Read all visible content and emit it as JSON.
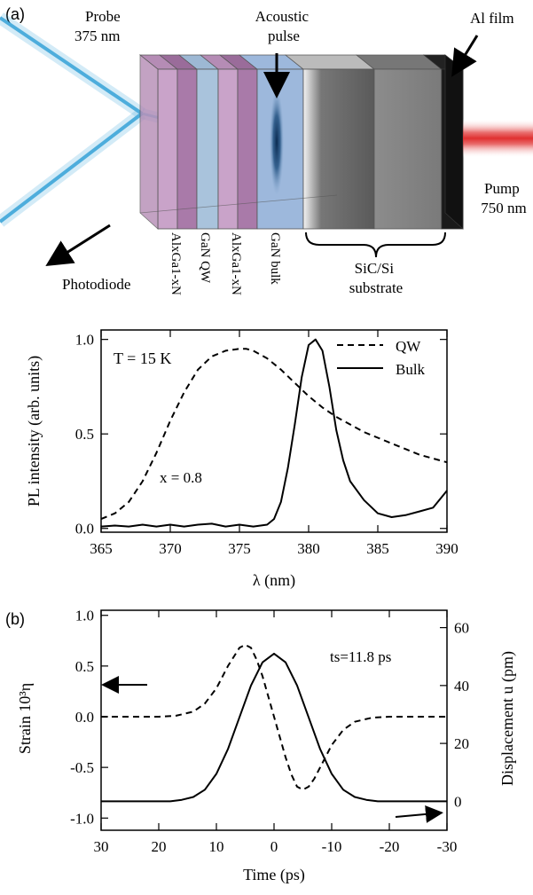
{
  "panel_a_label": "(a)",
  "panel_b_label": "(b)",
  "diagram": {
    "probe_label_line1": "Probe",
    "probe_label_line2": "375 nm",
    "acoustic_label_line1": "Acoustic",
    "acoustic_label_line2": "pulse",
    "al_film_label": "Al film",
    "pump_label_line1": "Pump",
    "pump_label_line2": "750 nm",
    "photodiode_label": "Photodiode",
    "layer_labels": [
      "AlxGa1-xN",
      "GaN QW",
      "AlxGa1-xN",
      "GaN bulk"
    ],
    "substrate_label_line1": "SiC/Si",
    "substrate_label_line2": "substrate",
    "colors": {
      "algan": "#c9a3c9",
      "gan_qw": "#a9c3dc",
      "gan_bulk": "#9db8dc",
      "beam_blue": "#2f9fd6",
      "pump_red": "#e03030"
    }
  },
  "chart_data": [
    {
      "type": "line",
      "xlabel": "λ (nm)",
      "ylabel": "PL intensity (arb. units)",
      "xlim": [
        365,
        390
      ],
      "ylim": [
        -0.02,
        1.05
      ],
      "xticks": [
        "365",
        "370",
        "375",
        "380",
        "385",
        "390"
      ],
      "yticks": [
        "0.0",
        "0.5",
        "1.0"
      ],
      "ytick_values": [
        0.0,
        0.5,
        1.0
      ],
      "xtick_values": [
        365,
        370,
        375,
        380,
        385,
        390
      ],
      "legend_position": "top-right",
      "annotation_T": "T = 15 K",
      "annotation_x": "x = 0.8",
      "series": [
        {
          "name": "QW",
          "style": "dashed",
          "x": [
            365,
            366,
            367,
            368,
            369,
            370,
            371,
            372,
            373,
            374,
            375,
            375.5,
            376,
            377,
            378,
            379,
            380,
            381,
            382,
            383,
            384,
            385,
            386,
            387,
            388,
            389,
            390
          ],
          "y": [
            0.05,
            0.08,
            0.14,
            0.25,
            0.4,
            0.57,
            0.72,
            0.84,
            0.91,
            0.94,
            0.95,
            0.95,
            0.94,
            0.9,
            0.84,
            0.77,
            0.7,
            0.64,
            0.59,
            0.55,
            0.51,
            0.48,
            0.45,
            0.42,
            0.39,
            0.37,
            0.35
          ]
        },
        {
          "name": "Bulk",
          "style": "solid",
          "x": [
            365,
            366,
            367,
            368,
            369,
            370,
            371,
            372,
            373,
            374,
            375,
            376,
            377,
            377.5,
            378,
            378.5,
            379,
            379.5,
            380,
            380.5,
            381,
            381.5,
            382,
            382.5,
            383,
            384,
            385,
            386,
            387,
            388,
            389,
            390
          ],
          "y": [
            0.01,
            0.015,
            0.01,
            0.02,
            0.01,
            0.02,
            0.01,
            0.02,
            0.025,
            0.01,
            0.02,
            0.01,
            0.02,
            0.05,
            0.14,
            0.32,
            0.55,
            0.8,
            0.97,
            1.0,
            0.94,
            0.75,
            0.52,
            0.36,
            0.25,
            0.15,
            0.08,
            0.06,
            0.07,
            0.09,
            0.11,
            0.2
          ]
        }
      ]
    },
    {
      "type": "line",
      "xlabel": "Time (ps)",
      "ylabel_left": "Strain 10³η",
      "ylabel_right": "Displacement u (pm)",
      "xlim": [
        30,
        -30
      ],
      "ylim_left": [
        -1.12,
        1.05
      ],
      "ylim_right": [
        -10,
        66
      ],
      "xticks": [
        "30",
        "20",
        "10",
        "0",
        "-10",
        "-20",
        "-30"
      ],
      "xtick_values": [
        30,
        20,
        10,
        0,
        -10,
        -20,
        -30
      ],
      "yticks_left": [
        "-1.0",
        "-0.5",
        "0.0",
        "0.5",
        "1.0"
      ],
      "ytick_left_values": [
        -1.0,
        -0.5,
        0.0,
        0.5,
        1.0
      ],
      "yticks_right": [
        "0",
        "20",
        "40",
        "60"
      ],
      "ytick_right_values": [
        0,
        20,
        40,
        60
      ],
      "annotation": "ts=11.8 ps",
      "series": [
        {
          "name": "Strain",
          "axis": "left",
          "style": "dashed",
          "x": [
            30,
            20,
            17,
            14,
            12,
            10,
            8,
            6,
            5,
            4,
            3,
            2,
            1,
            0,
            -1,
            -2,
            -3,
            -4,
            -5,
            -6,
            -7,
            -8,
            -10,
            -12,
            -14,
            -17,
            -20,
            -30
          ],
          "y": [
            0.0,
            0.0,
            0.01,
            0.05,
            0.13,
            0.28,
            0.5,
            0.68,
            0.71,
            0.68,
            0.56,
            0.4,
            0.2,
            0.0,
            -0.2,
            -0.4,
            -0.57,
            -0.69,
            -0.72,
            -0.69,
            -0.61,
            -0.5,
            -0.28,
            -0.13,
            -0.05,
            -0.01,
            0.0,
            0.0
          ]
        },
        {
          "name": "Displacement",
          "axis": "right",
          "style": "solid",
          "x": [
            30,
            18,
            16,
            14,
            12,
            10,
            8,
            6,
            4,
            2,
            0,
            -2,
            -4,
            -6,
            -8,
            -10,
            -12,
            -14,
            -16,
            -18,
            -30
          ],
          "y": [
            0,
            0,
            0.5,
            1.5,
            4,
            9.5,
            18,
            29,
            40,
            48,
            51,
            48,
            40,
            29,
            18,
            9.5,
            4,
            1.5,
            0.5,
            0,
            0
          ]
        }
      ]
    }
  ]
}
